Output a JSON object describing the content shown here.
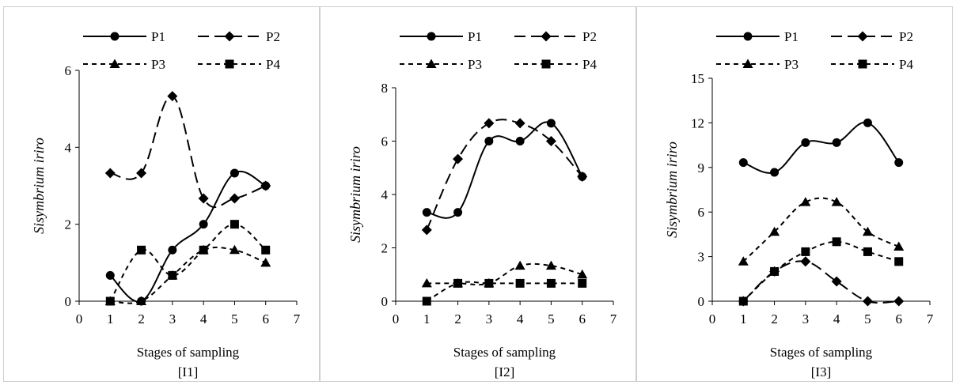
{
  "chart_data": [
    {
      "type": "line",
      "panel_label": "[I1]",
      "xlabel": "Stages of sampling",
      "ylabel": "Sisymbrium iriro",
      "xlim": [
        0,
        7
      ],
      "ylim": [
        0,
        6
      ],
      "xticks": [
        0,
        1,
        2,
        3,
        4,
        5,
        6,
        7
      ],
      "yticks": [
        0,
        2,
        4,
        6
      ],
      "grid": false,
      "legend_position": "top",
      "series": [
        {
          "name": "P1",
          "x": [
            1,
            2,
            3,
            4,
            5,
            6
          ],
          "y": [
            0.67,
            0,
            1.33,
            2.0,
            3.33,
            3.0
          ],
          "dash": "solid",
          "marker": "circle"
        },
        {
          "name": "P2",
          "x": [
            1,
            2,
            3,
            4,
            5,
            6
          ],
          "y": [
            3.33,
            3.33,
            5.33,
            2.67,
            2.67,
            3.0
          ],
          "dash": "longdash",
          "marker": "diamond"
        },
        {
          "name": "P3",
          "x": [
            1,
            2,
            3,
            4,
            5,
            6
          ],
          "y": [
            0,
            0,
            0.67,
            1.33,
            1.33,
            1.0
          ],
          "dash": "shortdash",
          "marker": "triangle"
        },
        {
          "name": "P4",
          "x": [
            1,
            2,
            3,
            4,
            5,
            6
          ],
          "y": [
            0,
            1.33,
            0.67,
            1.33,
            2.0,
            1.33
          ],
          "dash": "shortdash",
          "marker": "square"
        }
      ]
    },
    {
      "type": "line",
      "panel_label": "[I2]",
      "xlabel": "Stages of sampling",
      "ylabel": "Sisymbrium iriro",
      "xlim": [
        0,
        7
      ],
      "ylim": [
        0,
        8
      ],
      "xticks": [
        0,
        1,
        2,
        3,
        4,
        5,
        6,
        7
      ],
      "yticks": [
        0,
        2,
        4,
        6,
        8
      ],
      "grid": false,
      "legend_position": "top",
      "series": [
        {
          "name": "P1",
          "x": [
            1,
            2,
            3,
            4,
            5,
            6
          ],
          "y": [
            3.33,
            3.33,
            6.0,
            6.0,
            6.67,
            4.67
          ],
          "dash": "solid",
          "marker": "circle"
        },
        {
          "name": "P2",
          "x": [
            1,
            2,
            3,
            4,
            5,
            6
          ],
          "y": [
            2.67,
            5.33,
            6.67,
            6.67,
            6.0,
            4.67
          ],
          "dash": "longdash",
          "marker": "diamond"
        },
        {
          "name": "P3",
          "x": [
            1,
            2,
            3,
            4,
            5,
            6
          ],
          "y": [
            0.67,
            0.67,
            0.67,
            1.33,
            1.33,
            1.0
          ],
          "dash": "shortdash",
          "marker": "triangle"
        },
        {
          "name": "P4",
          "x": [
            1,
            2,
            3,
            4,
            5,
            6
          ],
          "y": [
            0,
            0.67,
            0.67,
            0.67,
            0.67,
            0.67
          ],
          "dash": "shortdash",
          "marker": "square"
        }
      ]
    },
    {
      "type": "line",
      "panel_label": "[I3]",
      "xlabel": "Stages of sampling",
      "ylabel": "Sisymbrium iriro",
      "xlim": [
        0,
        7
      ],
      "ylim": [
        0,
        15
      ],
      "xticks": [
        0,
        1,
        2,
        3,
        4,
        5,
        6,
        7
      ],
      "yticks": [
        0,
        3,
        6,
        9,
        12,
        15
      ],
      "grid": false,
      "legend_position": "top",
      "series": [
        {
          "name": "P1",
          "x": [
            1,
            2,
            3,
            4,
            5,
            6
          ],
          "y": [
            9.33,
            8.67,
            10.67,
            10.67,
            12.0,
            9.33
          ],
          "dash": "solid",
          "marker": "circle"
        },
        {
          "name": "P2",
          "x": [
            1,
            2,
            3,
            4,
            5,
            6
          ],
          "y": [
            0,
            2.0,
            2.67,
            1.33,
            0,
            0
          ],
          "dash": "longdash",
          "marker": "diamond"
        },
        {
          "name": "P3",
          "x": [
            1,
            2,
            3,
            4,
            5,
            6
          ],
          "y": [
            2.67,
            4.67,
            6.67,
            6.67,
            4.67,
            3.67
          ],
          "dash": "shortdash",
          "marker": "triangle"
        },
        {
          "name": "P4",
          "x": [
            1,
            2,
            3,
            4,
            5,
            6
          ],
          "y": [
            0,
            2.0,
            3.33,
            4.0,
            3.33,
            2.67
          ],
          "dash": "shortdash",
          "marker": "square"
        }
      ]
    }
  ]
}
